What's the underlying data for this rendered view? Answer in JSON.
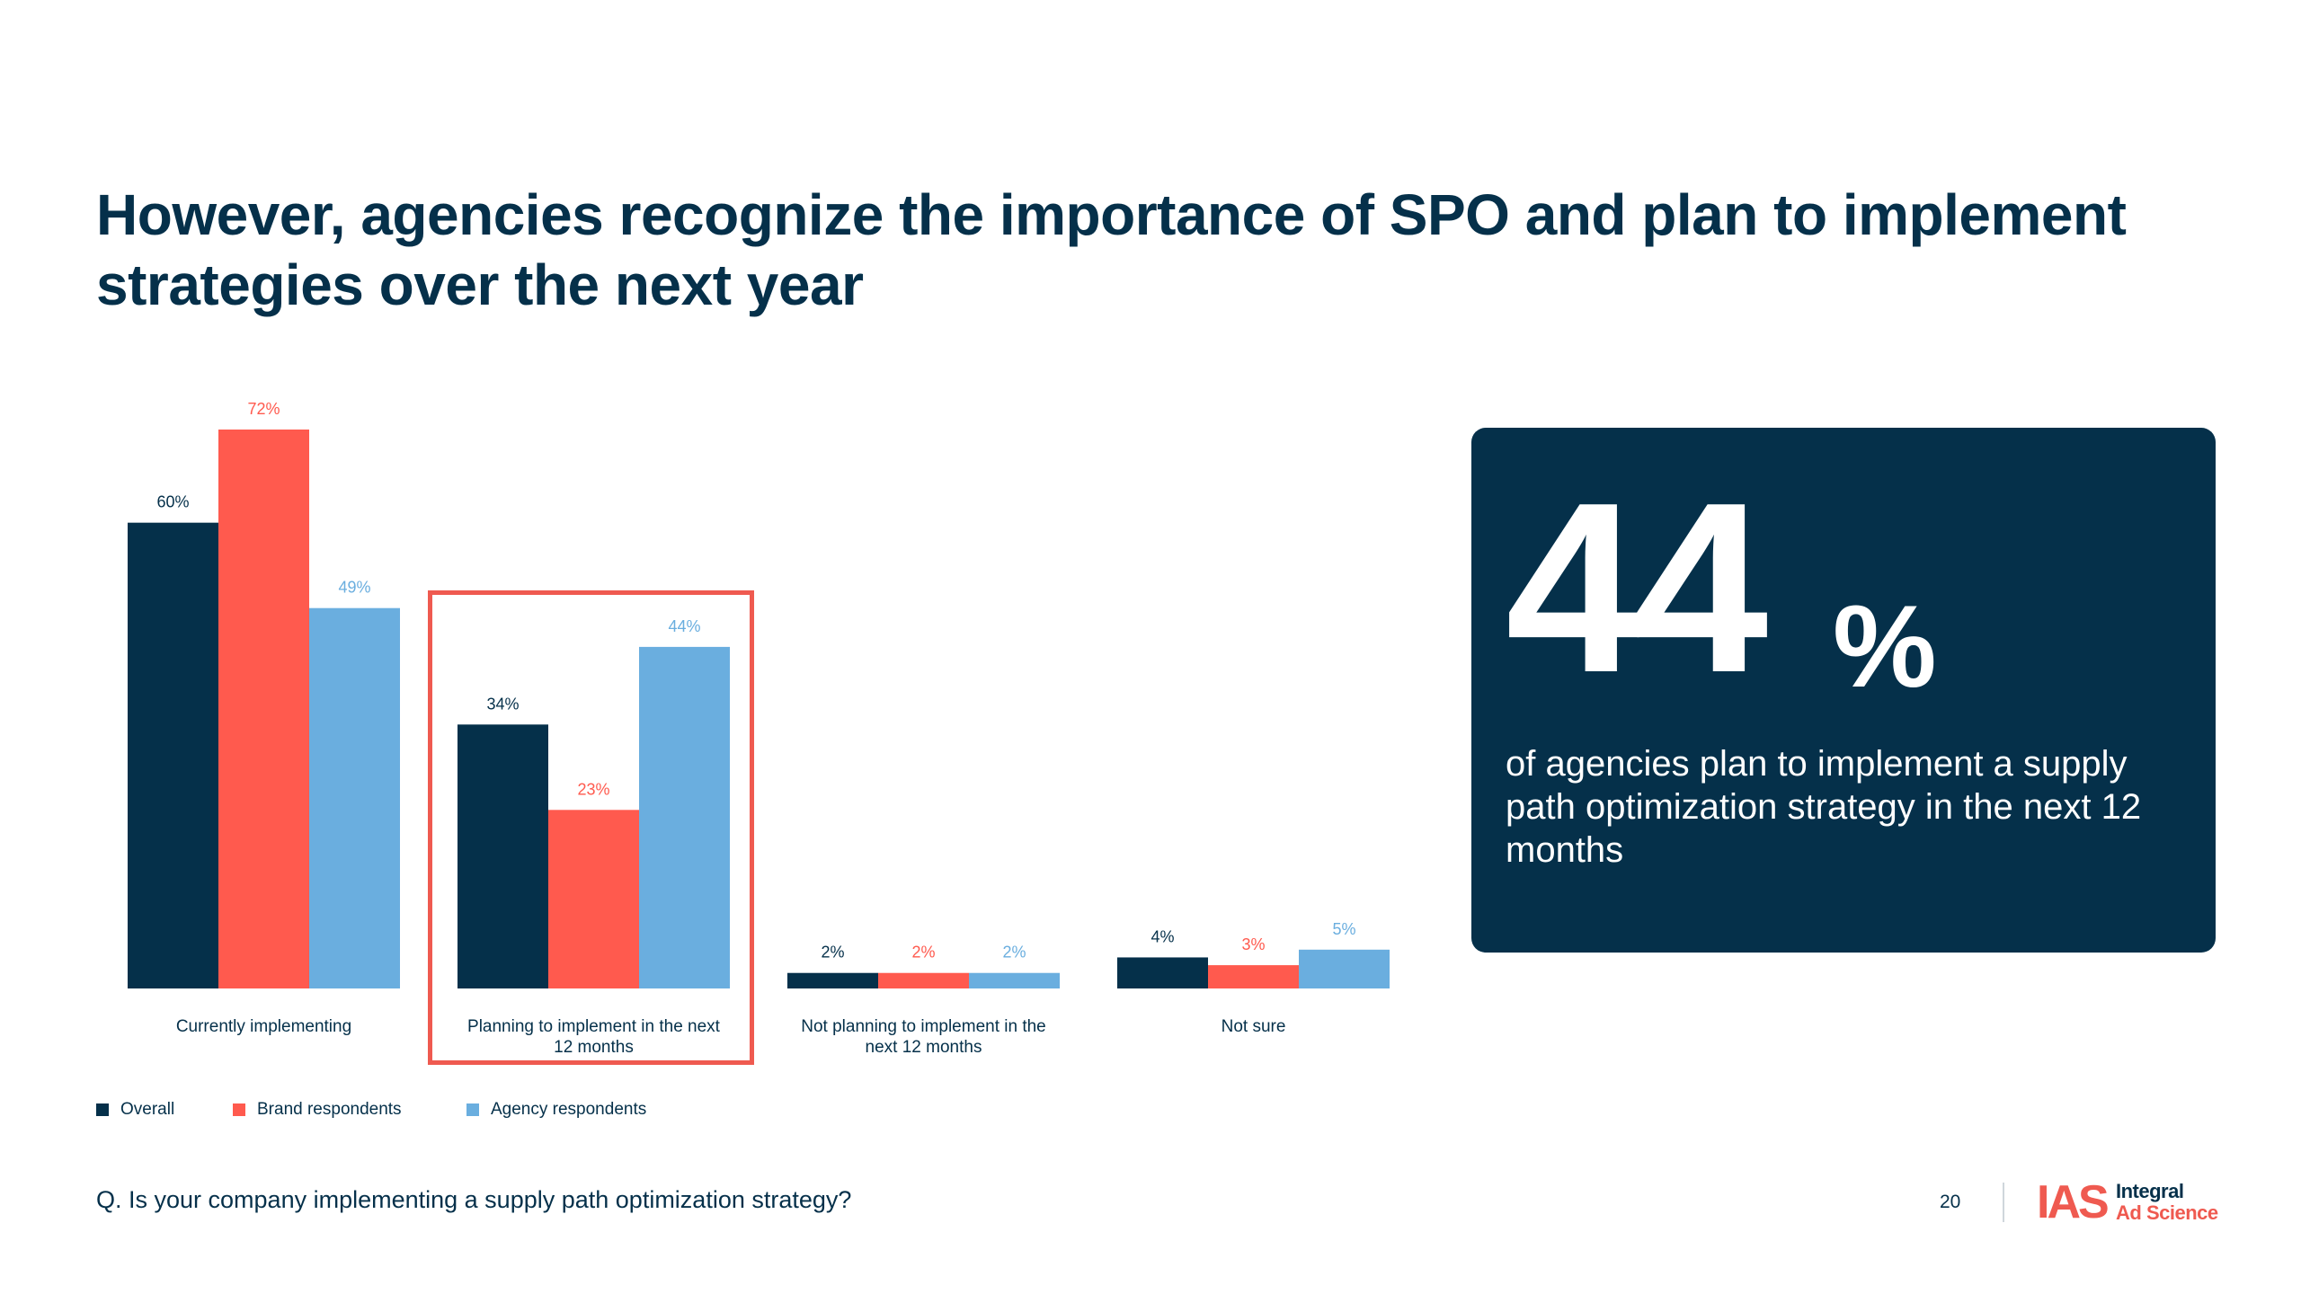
{
  "title": "However, agencies recognize the importance of SPO and plan to implement strategies over the next year",
  "colors": {
    "overall": "#05304a",
    "brand": "#ff5a4e",
    "agency": "#6aaedf",
    "highlight": "#ef5a50"
  },
  "chart_data": {
    "type": "bar",
    "title": "",
    "categories": [
      "Currently implementing",
      "Planning to implement in the next 12 months",
      "Not planning to implement in the next 12 months",
      "Not sure"
    ],
    "category_lines": [
      [
        "Currently implementing"
      ],
      [
        "Planning to implement in the next",
        "12 months"
      ],
      [
        "Not planning to implement in the",
        "next 12 months"
      ],
      [
        "Not sure"
      ]
    ],
    "series": [
      {
        "name": "Overall",
        "values": [
          60,
          34,
          2,
          4
        ],
        "labels": [
          "60%",
          "34%",
          "2%",
          "4%"
        ]
      },
      {
        "name": "Brand respondents",
        "values": [
          72,
          23,
          2,
          3
        ],
        "labels": [
          "72%",
          "23%",
          "2%",
          "3%"
        ]
      },
      {
        "name": "Agency respondents",
        "values": [
          49,
          44,
          2,
          5
        ],
        "labels": [
          "49%",
          "44%",
          "2%",
          "5%"
        ]
      }
    ],
    "xlabel": "",
    "ylabel": "",
    "ylim": [
      0,
      72
    ],
    "grid": false,
    "legend": "bottom-left",
    "highlighted_category": "Planning to implement in the next 12 months"
  },
  "legend": [
    {
      "label": "Overall"
    },
    {
      "label": "Brand respondents"
    },
    {
      "label": "Agency respondents"
    }
  ],
  "callout": {
    "number": "44",
    "percent": "%",
    "text": "of agencies plan to implement a supply path optimization strategy in the next 12 months"
  },
  "question": "Q. Is your company implementing a supply path optimization strategy?",
  "page_number": "20",
  "logo": {
    "mark": "IAS",
    "line1": "Integral",
    "line2": "Ad Science"
  }
}
